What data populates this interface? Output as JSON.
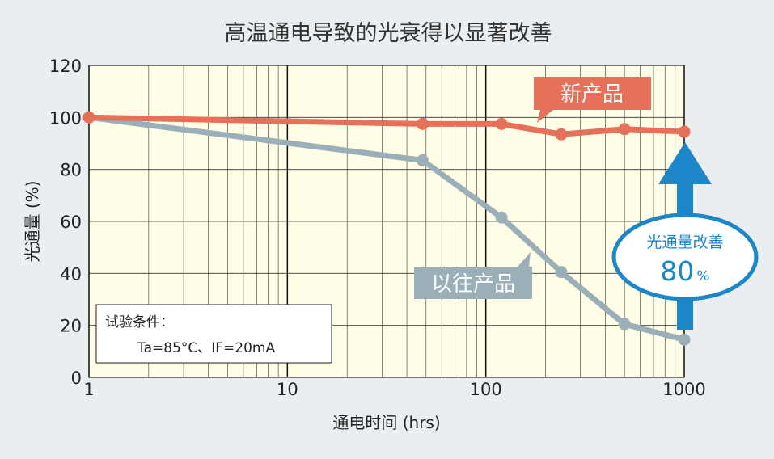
{
  "chart_data": {
    "type": "line",
    "title": "高温通电导致的光衰得以显著改善",
    "xlabel": "通电时间 (hrs)",
    "ylabel": "光通量 (%)",
    "x_scale": "log",
    "xlim": [
      1,
      1000
    ],
    "ylim": [
      0,
      120
    ],
    "x_ticks": [
      "1",
      "10",
      "100",
      "1000"
    ],
    "y_ticks": [
      "0",
      "20",
      "40",
      "60",
      "80",
      "100",
      "120"
    ],
    "grid": true,
    "series": [
      {
        "name": "新产品",
        "color": "#e5715a",
        "x": [
          1,
          48,
          120,
          240,
          500,
          1000
        ],
        "y": [
          100,
          97.5,
          97.5,
          93.5,
          95.5,
          94.5
        ]
      },
      {
        "name": "以往产品",
        "color": "#9bafb9",
        "x": [
          1,
          48,
          120,
          240,
          500,
          1000
        ],
        "y": [
          100,
          83.5,
          61.5,
          40.5,
          20.5,
          14.5
        ]
      }
    ],
    "conditions": {
      "title": "试验条件：",
      "text": "Ta=85°C、IF=20mA"
    },
    "improvement": {
      "label": "光通量改善",
      "value": "80",
      "unit": "%",
      "color": "#1b86c8"
    }
  }
}
